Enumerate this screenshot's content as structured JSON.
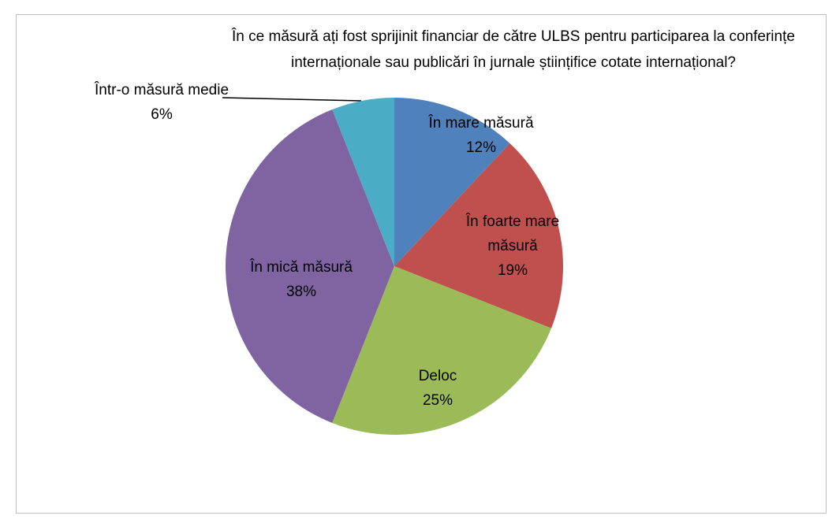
{
  "chart_data": {
    "type": "pie",
    "title": "În ce măsură ați fost sprijinit financiar de către ULBS pentru participarea la conferințe internaționale sau publicări în jurnale științifice cotate internațional?",
    "categories": [
      "În mare măsură",
      "În foarte mare măsură",
      "Deloc",
      "În mică măsură",
      "Într-o măsură medie"
    ],
    "values": [
      12,
      19,
      25,
      38,
      6
    ],
    "value_labels": [
      "12%",
      "19%",
      "25%",
      "38%",
      "6%"
    ],
    "colors": [
      "#4f81bd",
      "#c0504d",
      "#9bbb59",
      "#8064a2",
      "#4bacc6"
    ]
  }
}
